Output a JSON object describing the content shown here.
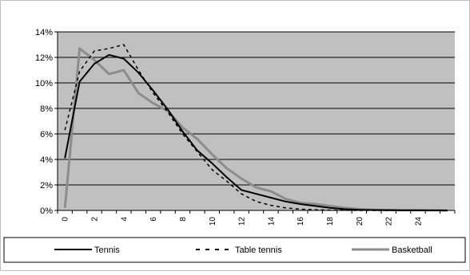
{
  "chart_data": {
    "type": "line",
    "x": [
      0,
      1,
      2,
      3,
      4,
      5,
      6,
      7,
      8,
      9,
      10,
      11,
      12,
      13,
      14,
      15,
      16,
      17,
      18,
      19,
      20,
      21,
      22,
      23,
      24,
      25,
      26
    ],
    "x_tick_labels": [
      "0",
      "2",
      "4",
      "6",
      "8",
      "10",
      "12",
      "14",
      "16",
      "18",
      "20",
      "22",
      "24"
    ],
    "y_tick_labels": [
      "0%",
      "2%",
      "4%",
      "6%",
      "8%",
      "10%",
      "12%",
      "14%"
    ],
    "ylim": [
      0,
      14
    ],
    "xlim": [
      0,
      27
    ],
    "grid": "horizontal",
    "legend_position": "bottom",
    "colors": {
      "plot_background": "#c0c0c0",
      "gridline": "#000000",
      "tennis": "#000000",
      "table_tennis": "#000000",
      "basketball": "#8c8c8c"
    },
    "series": [
      {
        "name": "Tennis",
        "style": "solid",
        "values": [
          4.1,
          10.1,
          11.5,
          12.2,
          11.9,
          10.8,
          9.4,
          7.9,
          6.2,
          4.7,
          3.7,
          2.6,
          1.6,
          1.3,
          1.0,
          0.7,
          0.5,
          0.35,
          0.2,
          0.1,
          0.05,
          0.03,
          0.02,
          0.01,
          0.01,
          0.0,
          0.0
        ]
      },
      {
        "name": "Table tennis",
        "style": "dashed",
        "values": [
          6.3,
          10.9,
          12.5,
          12.7,
          13.0,
          11.0,
          9.2,
          7.7,
          6.0,
          4.6,
          3.2,
          2.3,
          1.3,
          0.7,
          0.4,
          0.2,
          0.1,
          0.05,
          0.02,
          0.01,
          0.0,
          0.0,
          0.0,
          0.0,
          0.0,
          0.0,
          0.0
        ]
      },
      {
        "name": "Basketball",
        "style": "solid-thick",
        "values": [
          0.2,
          12.7,
          11.8,
          10.7,
          11.0,
          9.2,
          8.4,
          7.8,
          6.5,
          5.6,
          4.4,
          3.3,
          2.5,
          1.8,
          1.5,
          0.9,
          0.6,
          0.5,
          0.35,
          0.2,
          0.1,
          0.05,
          0.03,
          0.02,
          0.02,
          0.02,
          0.0
        ]
      }
    ]
  }
}
